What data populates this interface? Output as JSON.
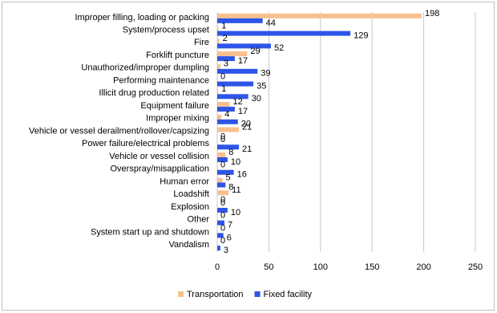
{
  "chart_data": {
    "type": "bar",
    "orientation": "horizontal",
    "categories": [
      "Improper filling, loading or packing",
      "System/process upset",
      "Fire",
      "Forklift puncture",
      "Unauthorized/improper dumpling",
      "Performing maintenance",
      "Illicit drug production related",
      "Equipment failure",
      "Improper mixing",
      "Vehicle or vessel derailment/rollover/capsizing",
      "Power failure/electrical problems",
      "Vehicle or vessel collision",
      "Overspray/misapplication",
      "Human error",
      "Loadshift",
      "Explosion",
      "Other",
      "System start up and shutdown",
      "Vandalism"
    ],
    "series": [
      {
        "name": "Transportation",
        "color": "#f8c08f",
        "values": [
          198,
          1,
          2,
          29,
          3,
          0,
          1,
          12,
          4,
          21,
          0,
          8,
          0,
          5,
          11,
          0,
          0,
          0,
          0
        ]
      },
      {
        "name": "Fixed facility",
        "color": "#2e55e6",
        "values": [
          44,
          129,
          52,
          17,
          39,
          35,
          30,
          17,
          20,
          0,
          21,
          10,
          16,
          8,
          0,
          10,
          7,
          6,
          3
        ]
      }
    ],
    "xlim": [
      0,
      250
    ],
    "xticks": [
      0,
      50,
      100,
      150,
      200,
      250
    ],
    "grid": true,
    "legend": "bottom"
  }
}
